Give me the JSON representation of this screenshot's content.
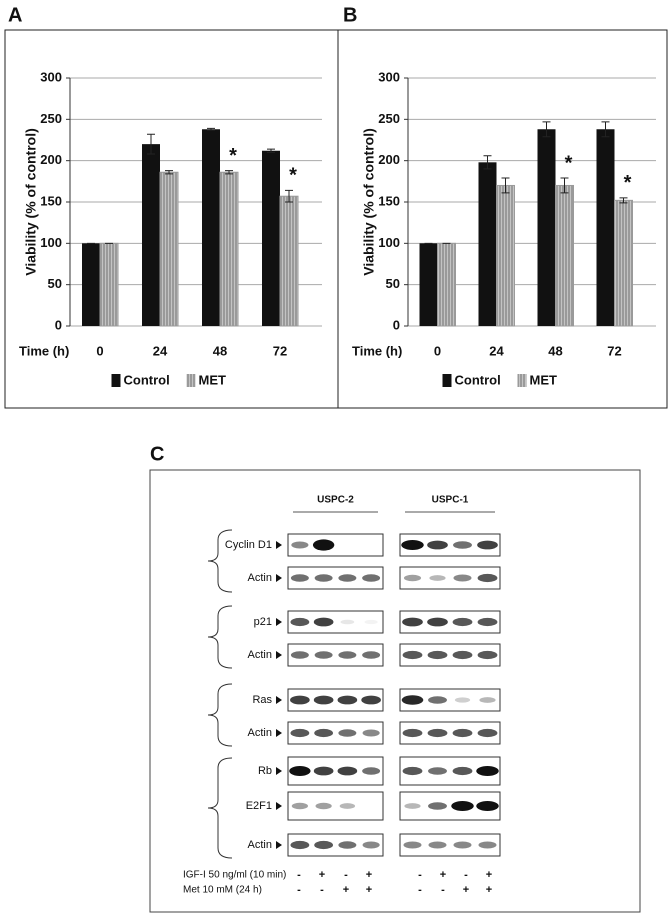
{
  "chart_data": [
    {
      "type": "bar",
      "panel_label": "A",
      "x_label": "Time (h)",
      "y_label": "Viability (% of control)",
      "categories": [
        "0",
        "24",
        "48",
        "72"
      ],
      "series": [
        {
          "name": "Control",
          "color": "#111111",
          "values": [
            100,
            220,
            238,
            212
          ],
          "errors": [
            0,
            12,
            1,
            2
          ]
        },
        {
          "name": "MET",
          "color": "#9a9a9a",
          "values": [
            100,
            186,
            186,
            157
          ],
          "errors": [
            0,
            2,
            2,
            7
          ],
          "markers": [
            null,
            null,
            "*",
            "*"
          ]
        }
      ],
      "ylim": [
        0,
        300
      ],
      "yticks": [
        0,
        50,
        100,
        150,
        200,
        250,
        300
      ],
      "grid": true,
      "legend": "bottom"
    },
    {
      "type": "bar",
      "panel_label": "B",
      "x_label": "Time (h)",
      "y_label": "Viability (% of control)",
      "categories": [
        "0",
        "24",
        "48",
        "72"
      ],
      "series": [
        {
          "name": "Control",
          "color": "#111111",
          "values": [
            100,
            198,
            238,
            238
          ],
          "errors": [
            0,
            8,
            9,
            9
          ]
        },
        {
          "name": "MET",
          "color": "#9a9a9a",
          "values": [
            100,
            170,
            170,
            152
          ],
          "errors": [
            0,
            9,
            9,
            3
          ],
          "markers": [
            null,
            null,
            "*",
            "*"
          ]
        }
      ],
      "ylim": [
        0,
        300
      ],
      "yticks": [
        0,
        50,
        100,
        150,
        200,
        250,
        300
      ],
      "grid": true,
      "legend": "bottom"
    }
  ],
  "blot": {
    "panel_label": "C",
    "columns": [
      "USPC-2",
      "USPC-1"
    ],
    "rows": [
      "Cyclin D1",
      "Actin",
      "p21",
      "Actin",
      "Ras",
      "Actin",
      "Rb",
      "E2F1",
      "Actin"
    ],
    "treatments": [
      {
        "name": "IGF-I 50 ng/ml (10 min)",
        "signs": [
          "-",
          "+",
          "-",
          "+",
          "-",
          "+",
          "-",
          "+"
        ]
      },
      {
        "name": "Met 10 mM (24 h)",
        "signs": [
          "-",
          "-",
          "+",
          "+",
          "-",
          "-",
          "+",
          "+"
        ]
      }
    ]
  }
}
